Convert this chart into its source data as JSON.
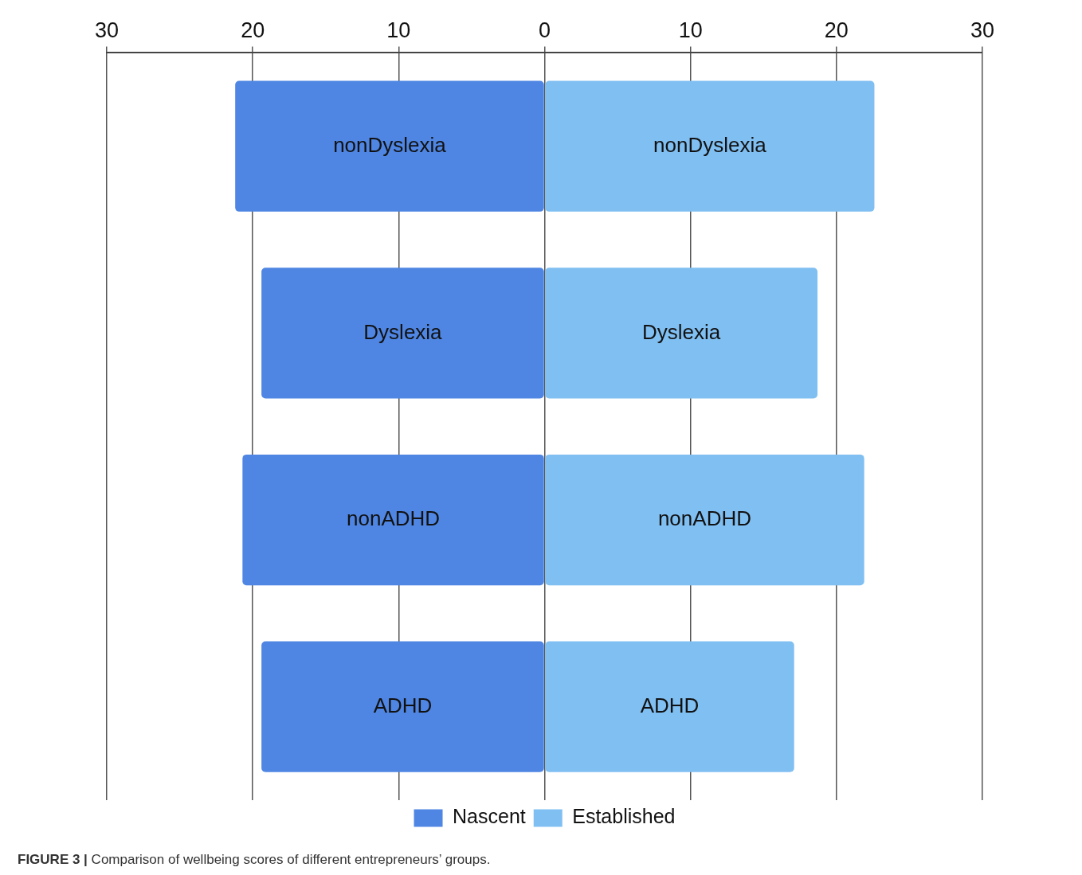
{
  "chart_data": {
    "type": "bar",
    "orientation": "horizontal",
    "stacked": true,
    "categories": [
      "nonDyslexia",
      "Dyslexia",
      "nonADHD",
      "ADHD"
    ],
    "series": [
      {
        "name": "Nascent",
        "color": "#4f86e3",
        "values": [
          -21.2,
          -19.4,
          -20.7,
          -19.4
        ]
      },
      {
        "name": "Established",
        "color": "#80bff2",
        "values": [
          22.6,
          18.7,
          21.9,
          17.1
        ]
      }
    ],
    "xlim": [
      -30,
      30
    ],
    "xticks": [
      {
        "value": -30,
        "label": "30"
      },
      {
        "value": -20,
        "label": "20"
      },
      {
        "value": -10,
        "label": "10"
      },
      0,
      10,
      20,
      30
    ],
    "grid": "x",
    "legend": "bottom",
    "tick_labels": "x",
    "annotations": [
      "FIGURE 3 | Comparison of wellbeing scores of different entrepreneurs’ groups."
    ]
  }
}
